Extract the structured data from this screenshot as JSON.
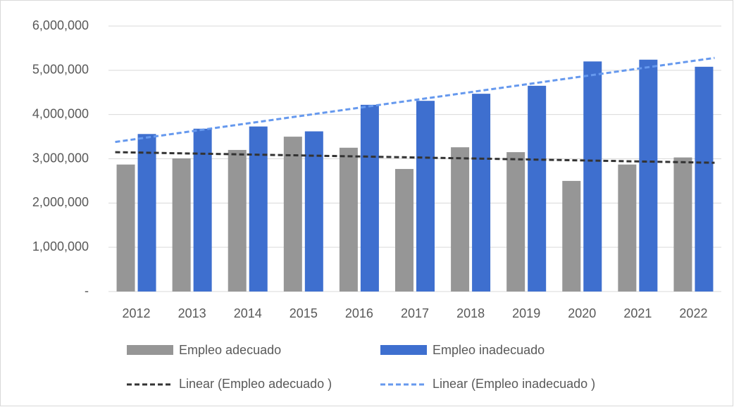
{
  "chart_data": {
    "type": "bar",
    "categories": [
      "2012",
      "2013",
      "2014",
      "2015",
      "2016",
      "2017",
      "2018",
      "2019",
      "2020",
      "2021",
      "2022"
    ],
    "series": [
      {
        "name": "Empleo adecuado",
        "color": "#969696",
        "values": [
          2870000,
          3010000,
          3200000,
          3500000,
          3250000,
          2770000,
          3260000,
          3150000,
          2500000,
          2870000,
          3030000
        ]
      },
      {
        "name": "Empleo inadecuado",
        "color": "#3e6fcf",
        "values": [
          3560000,
          3680000,
          3730000,
          3620000,
          4220000,
          4310000,
          4470000,
          4650000,
          5200000,
          5240000,
          5080000
        ]
      }
    ],
    "trendlines": [
      {
        "name": "Linear (Empleo adecuado )",
        "color": "#333333",
        "values": [
          3150000,
          2910000
        ]
      },
      {
        "name": "Linear (Empleo inadecuado )",
        "color": "#6699ee",
        "values": [
          3380000,
          5280000
        ]
      }
    ],
    "ylim": [
      0,
      6000000
    ],
    "yticks": [
      {
        "value": 0,
        "label": "-"
      },
      {
        "value": 1000000,
        "label": "1,000,000"
      },
      {
        "value": 2000000,
        "label": "2,000,000"
      },
      {
        "value": 3000000,
        "label": "3,000,000"
      },
      {
        "value": 4000000,
        "label": "4,000,000"
      },
      {
        "value": 5000000,
        "label": "5,000,000"
      },
      {
        "value": 6000000,
        "label": "6,000,000"
      }
    ],
    "grid": true
  }
}
